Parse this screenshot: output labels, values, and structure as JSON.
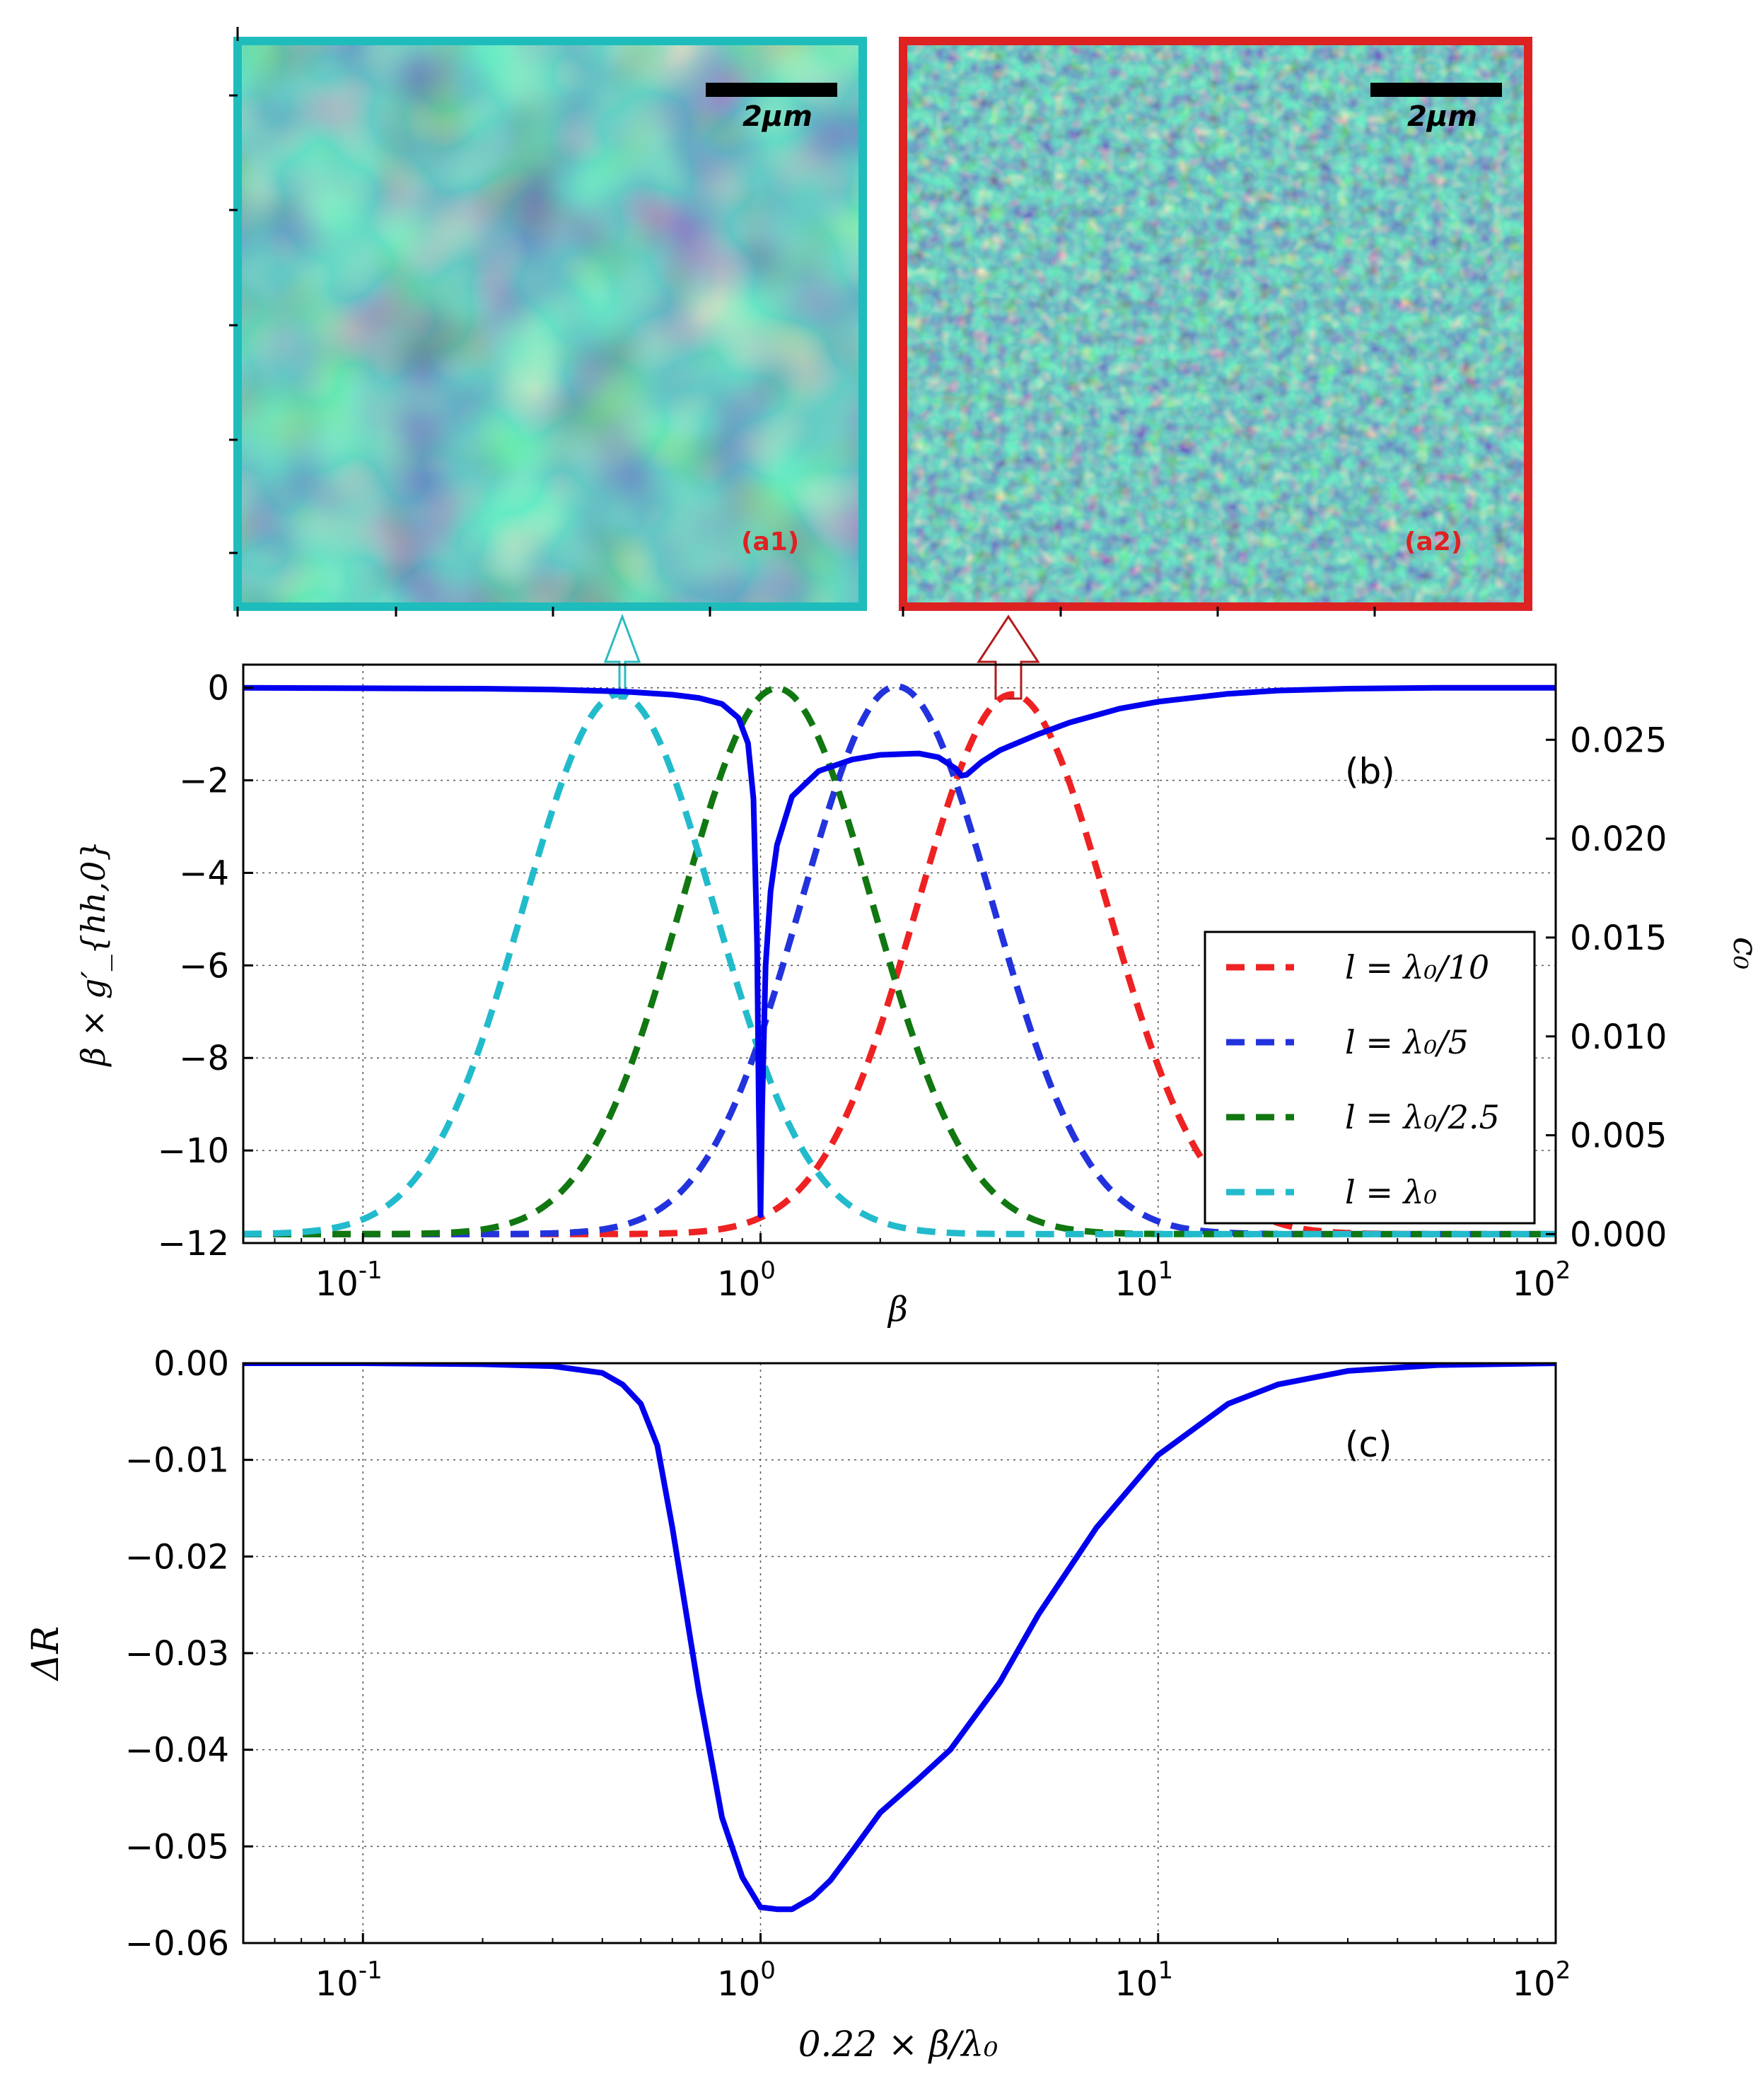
{
  "chart_data": [
    {
      "type": "image",
      "panel": "a1",
      "label": "(a1)",
      "scale_bar": "2μm",
      "border_color": "#1fbcbc",
      "pattern": "coarse"
    },
    {
      "type": "image",
      "panel": "a2",
      "label": "(a2)",
      "scale_bar": "2μm",
      "border_color": "#dd2222",
      "pattern": "fine"
    },
    {
      "type": "line",
      "panel": "b",
      "label": "(b)",
      "xlabel": "β",
      "ylabel": "β × g′_{hh,0}",
      "ylabel_right": "c₀",
      "xscale": "log",
      "xlim": [
        0.05,
        100
      ],
      "ylim": [
        -12,
        0.5
      ],
      "yticks": [
        "0",
        "−2",
        "−4",
        "−6",
        "−8",
        "−10",
        "−12"
      ],
      "ytick_values": [
        0,
        -2,
        -4,
        -6,
        -8,
        -10,
        -12
      ],
      "y2lim": [
        -0.00045,
        0.0288
      ],
      "y2ticks": [
        "0.025",
        "0.020",
        "0.015",
        "0.010",
        "0.005",
        "0.000"
      ],
      "y2tick_values": [
        0.025,
        0.02,
        0.015,
        0.01,
        0.005,
        0.0
      ],
      "xticks": [
        {
          "base": "10",
          "exp": "-1",
          "value": 0.1
        },
        {
          "base": "10",
          "exp": "0",
          "value": 1
        },
        {
          "base": "10",
          "exp": "1",
          "value": 10
        },
        {
          "base": "10",
          "exp": "2",
          "value": 100
        }
      ],
      "grid": true,
      "legend_position": "center-right",
      "series": [
        {
          "name": "β × g′hh,0",
          "axis": "left",
          "style": "solid",
          "color": "#0000ee",
          "x": [
            0.05,
            0.1,
            0.2,
            0.3,
            0.45,
            0.6,
            0.7,
            0.8,
            0.88,
            0.93,
            0.96,
            0.98,
            0.99,
            1.0,
            1.01,
            1.03,
            1.06,
            1.1,
            1.2,
            1.4,
            1.7,
            2.0,
            2.5,
            2.8,
            3.1,
            3.2,
            3.3,
            3.6,
            4.0,
            5.0,
            6.0,
            8.0,
            10,
            15,
            20,
            30,
            50,
            100
          ],
          "y": [
            0,
            -0.01,
            -0.02,
            -0.04,
            -0.08,
            -0.15,
            -0.22,
            -0.35,
            -0.65,
            -1.2,
            -2.4,
            -5.5,
            -9.0,
            -11.4,
            -9.0,
            -6.0,
            -4.4,
            -3.4,
            -2.35,
            -1.8,
            -1.55,
            -1.45,
            -1.42,
            -1.5,
            -1.75,
            -1.9,
            -1.88,
            -1.6,
            -1.35,
            -1.0,
            -0.75,
            -0.45,
            -0.3,
            -0.13,
            -0.06,
            -0.02,
            0,
            0
          ]
        },
        {
          "name": "l = λ₀/10",
          "axis": "right",
          "style": "dashed",
          "color": "#ee2222",
          "center": 4.3,
          "peak": 0.0273,
          "sigma": 0.24
        },
        {
          "name": "l = λ₀/5",
          "axis": "right",
          "style": "dashed",
          "color": "#2233dd",
          "center": 2.2,
          "peak": 0.0277,
          "sigma": 0.24
        },
        {
          "name": "l = λ₀/2.5",
          "axis": "right",
          "style": "dashed",
          "color": "#117711",
          "center": 1.1,
          "peak": 0.0276,
          "sigma": 0.24
        },
        {
          "name": "l = λ₀",
          "axis": "right",
          "style": "dashed",
          "color": "#22bbcc",
          "center": 0.44,
          "peak": 0.0273,
          "sigma": 0.24
        }
      ],
      "legend": [
        "l = λ₀/10",
        "l = λ₀/5",
        "l = λ₀/2.5",
        "l = λ₀"
      ]
    },
    {
      "type": "line",
      "panel": "c",
      "label": "(c)",
      "xlabel": "0.22 × β/λ₀",
      "ylabel": "ΔR",
      "xscale": "log",
      "xlim": [
        0.05,
        100
      ],
      "ylim": [
        -0.06,
        0
      ],
      "yticks": [
        "0.00",
        "−0.01",
        "−0.02",
        "−0.03",
        "−0.04",
        "−0.05",
        "−0.06"
      ],
      "ytick_values": [
        0,
        -0.01,
        -0.02,
        -0.03,
        -0.04,
        -0.05,
        -0.06
      ],
      "xticks": [
        {
          "base": "10",
          "exp": "-1",
          "value": 0.1
        },
        {
          "base": "10",
          "exp": "0",
          "value": 1
        },
        {
          "base": "10",
          "exp": "1",
          "value": 10
        },
        {
          "base": "10",
          "exp": "2",
          "value": 100
        }
      ],
      "grid": true,
      "series": [
        {
          "name": "ΔR",
          "color": "#0000ee",
          "x": [
            0.05,
            0.1,
            0.2,
            0.3,
            0.4,
            0.45,
            0.5,
            0.55,
            0.6,
            0.7,
            0.8,
            0.9,
            1.0,
            1.1,
            1.2,
            1.35,
            1.5,
            1.7,
            2.0,
            2.5,
            3.0,
            4.0,
            5.0,
            7.0,
            10,
            15,
            20,
            30,
            50,
            100
          ],
          "y": [
            0,
            0,
            -0.0001,
            -0.0003,
            -0.001,
            -0.0022,
            -0.0042,
            -0.0085,
            -0.017,
            -0.034,
            -0.047,
            -0.0532,
            -0.0563,
            -0.0565,
            -0.0565,
            -0.0553,
            -0.0535,
            -0.0505,
            -0.0465,
            -0.043,
            -0.04,
            -0.033,
            -0.026,
            -0.017,
            -0.0095,
            -0.0042,
            -0.0022,
            -0.0008,
            -0.0002,
            0
          ]
        }
      ]
    }
  ]
}
